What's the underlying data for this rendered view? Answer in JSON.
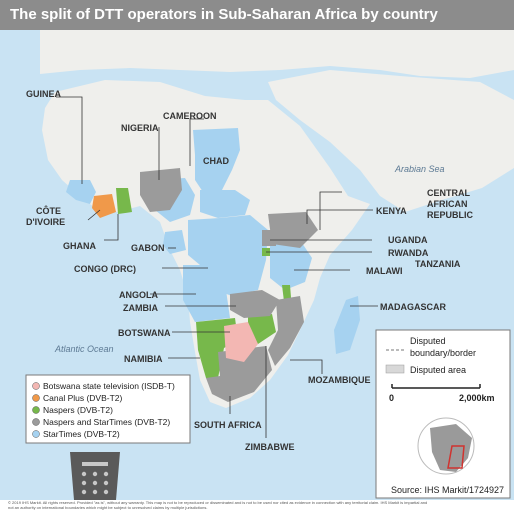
{
  "title": "The split of DTT operators in Sub-Saharan Africa by country",
  "colors": {
    "sea": "#c9e3f3",
    "land": "#efefec",
    "canal_plus": "#f0994a",
    "naspers": "#77b84b",
    "naspers_startimes": "#9b9b9b",
    "startimes": "#a6d2f0",
    "botswana_state": "#f3b7b3",
    "title_bar": "#8c8c8c"
  },
  "sea_labels": {
    "arabian_sea": "Arabian Sea",
    "atlantic_ocean": "Atlantic Ocean"
  },
  "country_labels": {
    "guinea": "GUINEA",
    "nigeria": "NIGERIA",
    "cameroon": "CAMEROON",
    "chad": "CHAD",
    "central_african_republic_1": "CENTRAL",
    "central_african_republic_2": "AFRICAN",
    "central_african_republic_3": "REPUBLIC",
    "kenya": "KENYA",
    "cote_divoire_1": "CÔTE",
    "cote_divoire_2": "D'IVOIRE",
    "ghana": "GHANA",
    "gabon": "GABON",
    "uganda": "UGANDA",
    "rwanda": "RWANDA",
    "tanzania": "TANZANIA",
    "congo_drc": "CONGO (DRC)",
    "malawi": "MALAWI",
    "angola": "ANGOLA",
    "zambia": "ZAMBIA",
    "madagascar": "MADAGASCAR",
    "botswana": "BOTSWANA",
    "namibia": "NAMIBIA",
    "mozambique": "MOZAMBIQUE",
    "south_africa": "SOUTH AFRICA",
    "zimbabwe": "ZIMBABWE"
  },
  "legend": {
    "items": [
      {
        "label": "Botswana state television (ISDB-T)",
        "color": "#f3b7b3"
      },
      {
        "label": "Canal Plus (DVB-T2)",
        "color": "#f0994a"
      },
      {
        "label": "Naspers (DVB-T2)",
        "color": "#77b84b"
      },
      {
        "label": "Naspers and StarTimes (DVB-T2)",
        "color": "#9b9b9b"
      },
      {
        "label": "StarTimes (DVB-T2)",
        "color": "#a6d2f0"
      }
    ]
  },
  "inset": {
    "disputed_border_1": "Disputed",
    "disputed_border_2": "boundary/border",
    "disputed_area": "Disputed area",
    "scale_start": "0",
    "scale_end": "2,000km",
    "source": "Source: IHS Markit/1724927"
  },
  "footer": {
    "line1": "© 2019 IHS Markit. All rights reserved. Provided \"as is\", without any warranty. This map is not to be reproduced or disseminated and is not to be used nor cited as evidence in connection with any territorial claim. IHS Markit is impartial and",
    "line2": "not an authority on international boundaries which might be subject to unresolved claims by multiple jurisdictions."
  }
}
